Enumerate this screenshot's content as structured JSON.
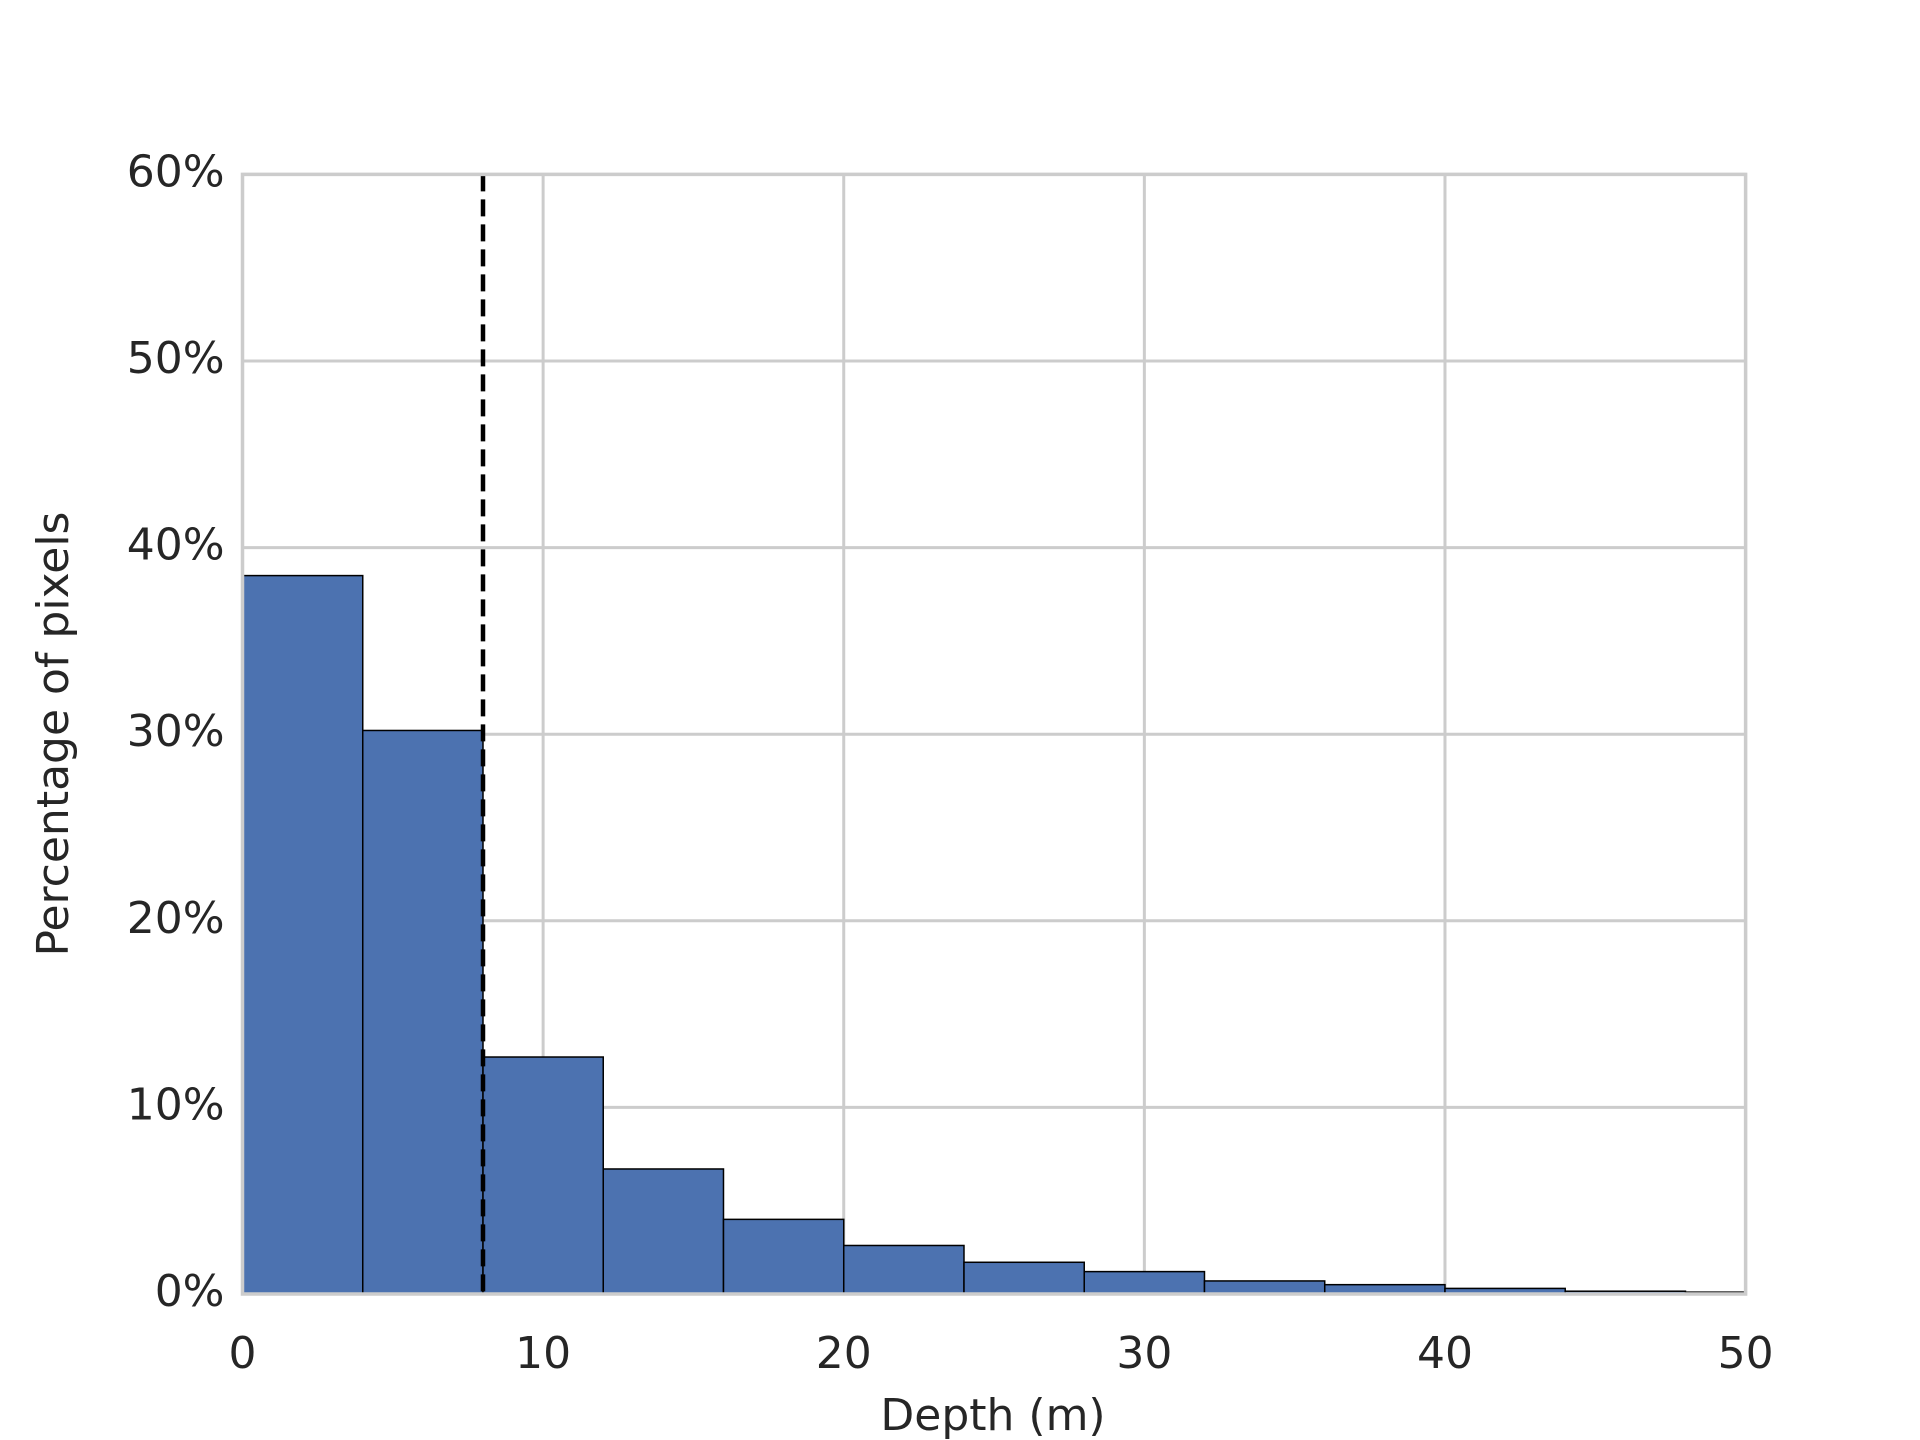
{
  "chart_data": {
    "type": "histogram",
    "xlabel": "Depth (m)",
    "ylabel": "Percentage of pixels",
    "bins": [
      0,
      4,
      8,
      12,
      16,
      20,
      24,
      28,
      32,
      36,
      40,
      44,
      48,
      50
    ],
    "values": [
      38.5,
      30.2,
      12.7,
      6.7,
      4.0,
      2.6,
      1.7,
      1.2,
      0.7,
      0.5,
      0.3,
      0.15,
      0.1
    ],
    "color": "#4c72b0",
    "edgecolor": "#000000",
    "xlim": [
      0,
      50
    ],
    "xticks": [
      0,
      10,
      20,
      30,
      40,
      50
    ],
    "ylim": [
      0,
      60
    ],
    "yticks": [
      {
        "value": 0,
        "label": "0%"
      },
      {
        "value": 10,
        "label": "10%"
      },
      {
        "value": 20,
        "label": "20%"
      },
      {
        "value": 30,
        "label": "30%"
      },
      {
        "value": 40,
        "label": "40%"
      },
      {
        "value": 50,
        "label": "50%"
      },
      {
        "value": 60,
        "label": "60%"
      }
    ],
    "vline_x": 8,
    "grid": true
  }
}
